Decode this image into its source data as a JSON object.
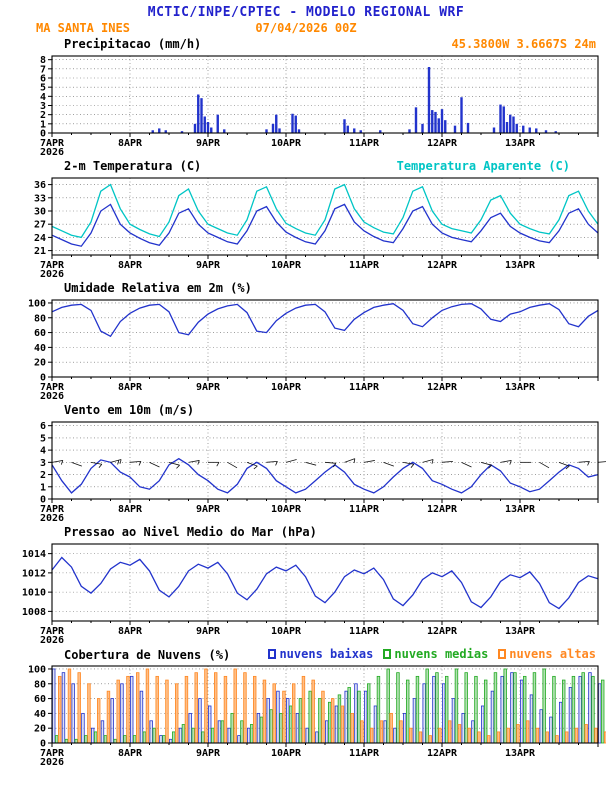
{
  "header": {
    "title": "MCTIC/INPE/CPTEC - MODELO REGIONAL WRF",
    "station": "MA SANTA INES",
    "run_datetime": "07/04/2026 00Z",
    "location": "45.3800W 3.6667S 24m"
  },
  "colors": {
    "title_blue": "#2222cc",
    "orange": "#ff8800",
    "line_blue": "#2233cc",
    "cyan": "#00c5c5",
    "green": "#22aa22",
    "cloud_orange": "#ff8822"
  },
  "panels": {
    "precip": {
      "title": "Precipitacao (mm/h)"
    },
    "temp": {
      "title": "2-m Temperatura (C)",
      "title2": "Temperatura Aparente (C)"
    },
    "rh": {
      "title": "Umidade Relativa em 2m (%)"
    },
    "wind": {
      "title": "Vento em 10m (m/s)"
    },
    "pres": {
      "title": "Pressao ao Nivel Medio do Mar (hPa)"
    },
    "clouds": {
      "title": "Cobertura de Nuvens (%)"
    }
  },
  "x_axis": {
    "hours_total": 168,
    "step_hours": 3,
    "ticks": [
      {
        "h": 0,
        "label": "7APR",
        "sub": "2026"
      },
      {
        "h": 24,
        "label": "8APR"
      },
      {
        "h": 48,
        "label": "9APR"
      },
      {
        "h": 72,
        "label": "10APR"
      },
      {
        "h": 96,
        "label": "11APR"
      },
      {
        "h": 120,
        "label": "12APR"
      },
      {
        "h": 144,
        "label": "13APR"
      }
    ]
  },
  "chart_data": [
    {
      "id": "precipitation",
      "type": "bar",
      "title": "Precipitacao (mm/h)",
      "ylabel": "mm/h",
      "ylim": [
        0,
        8.4
      ],
      "yticks": [
        0,
        1,
        2,
        3,
        4,
        5,
        6,
        7,
        8
      ],
      "color": "#2233cc",
      "bars": [
        [
          31,
          0.3
        ],
        [
          33,
          0.5
        ],
        [
          35,
          0.3
        ],
        [
          40,
          0.2
        ],
        [
          44,
          1.0
        ],
        [
          45,
          4.2
        ],
        [
          46,
          3.8
        ],
        [
          47,
          1.8
        ],
        [
          48,
          1.2
        ],
        [
          49,
          0.6
        ],
        [
          51,
          2.0
        ],
        [
          53,
          0.4
        ],
        [
          66,
          0.4
        ],
        [
          68,
          1.0
        ],
        [
          69,
          2.0
        ],
        [
          70,
          0.5
        ],
        [
          74,
          2.1
        ],
        [
          75,
          1.9
        ],
        [
          76,
          0.4
        ],
        [
          90,
          1.5
        ],
        [
          91,
          0.8
        ],
        [
          93,
          0.5
        ],
        [
          95,
          0.3
        ],
        [
          101,
          0.3
        ],
        [
          110,
          0.4
        ],
        [
          112,
          2.8
        ],
        [
          114,
          1.0
        ],
        [
          116,
          7.2
        ],
        [
          117,
          2.5
        ],
        [
          118,
          2.3
        ],
        [
          119,
          1.6
        ],
        [
          120,
          2.6
        ],
        [
          121,
          1.4
        ],
        [
          124,
          0.8
        ],
        [
          126,
          3.9
        ],
        [
          128,
          1.1
        ],
        [
          136,
          0.6
        ],
        [
          138,
          3.1
        ],
        [
          139,
          2.9
        ],
        [
          140,
          1.2
        ],
        [
          141,
          2.0
        ],
        [
          142,
          1.8
        ],
        [
          143,
          1.0
        ],
        [
          145,
          0.8
        ],
        [
          147,
          0.6
        ],
        [
          149,
          0.5
        ],
        [
          152,
          0.3
        ],
        [
          155,
          0.2
        ]
      ]
    },
    {
      "id": "temperature",
      "type": "line",
      "ylim": [
        20,
        37.5
      ],
      "yticks": [
        21,
        24,
        27,
        30,
        33,
        36
      ],
      "series": [
        {
          "name": "2-m Temperatura (C)",
          "color": "#2233cc",
          "values": [
            24.5,
            23.5,
            22.5,
            22,
            25,
            30,
            31.5,
            27,
            25,
            23.8,
            22.8,
            22.2,
            25,
            29.5,
            30.5,
            27,
            25,
            24,
            23,
            22.5,
            25.5,
            30,
            31,
            27.5,
            25.2,
            24,
            23,
            22.5,
            25.5,
            30.5,
            31.5,
            27.5,
            25.5,
            24.2,
            23.2,
            22.8,
            26,
            30,
            31,
            27,
            25,
            24,
            23.5,
            23,
            25.5,
            28.5,
            29.5,
            26.5,
            25,
            24,
            23.2,
            22.8,
            25.5,
            29.5,
            30.5,
            27,
            25
          ]
        },
        {
          "name": "Temperatura Aparente (C)",
          "color": "#00c5c5",
          "values": [
            26.5,
            25.5,
            24.5,
            24,
            27.5,
            34.5,
            36,
            30.5,
            27,
            25.8,
            24.8,
            24.2,
            27.5,
            33.5,
            35,
            30,
            27,
            26,
            25,
            24.5,
            28,
            34.5,
            35.5,
            30.5,
            27.2,
            26,
            25,
            24.5,
            28,
            35,
            36,
            30.5,
            27.5,
            26.2,
            25.2,
            24.8,
            28.5,
            34.5,
            35.5,
            30,
            27,
            26,
            25.5,
            25,
            28,
            32.5,
            33.5,
            29.5,
            27,
            26,
            25.2,
            24.8,
            28,
            33.5,
            34.5,
            30,
            27
          ]
        }
      ]
    },
    {
      "id": "relative-humidity",
      "type": "line",
      "ylim": [
        0,
        104
      ],
      "yticks": [
        0,
        20,
        40,
        60,
        80,
        100
      ],
      "series": [
        {
          "name": "Umidade Relativa em 2m (%)",
          "color": "#2233cc",
          "values": [
            88,
            94,
            97,
            98,
            90,
            62,
            55,
            75,
            86,
            93,
            97,
            98,
            88,
            60,
            57,
            74,
            85,
            92,
            96,
            98,
            87,
            62,
            60,
            76,
            86,
            93,
            97,
            98,
            88,
            66,
            63,
            78,
            87,
            94,
            97,
            99,
            90,
            72,
            68,
            80,
            90,
            95,
            98,
            99,
            92,
            78,
            75,
            85,
            88,
            94,
            97,
            99,
            91,
            72,
            68,
            82,
            90
          ]
        }
      ]
    },
    {
      "id": "wind-10m",
      "type": "wind",
      "ylim": [
        0,
        6.3
      ],
      "yticks": [
        0,
        1,
        2,
        3,
        4,
        5,
        6
      ],
      "barb_y": 3,
      "series": [
        {
          "name": "Vento em 10m (m/s)",
          "color": "#2233cc",
          "values": [
            2.8,
            1.5,
            0.5,
            1.2,
            2.5,
            3.2,
            3.0,
            2.2,
            1.8,
            1.0,
            0.8,
            1.5,
            2.8,
            3.3,
            2.8,
            2.0,
            1.5,
            0.8,
            0.5,
            1.2,
            2.5,
            3.0,
            2.5,
            1.5,
            1.0,
            0.5,
            0.8,
            1.5,
            2.2,
            2.8,
            2.2,
            1.2,
            0.8,
            0.5,
            1.0,
            1.8,
            2.5,
            3.0,
            2.5,
            1.5,
            1.2,
            0.8,
            0.5,
            1.0,
            2.0,
            2.8,
            2.3,
            1.3,
            1.0,
            0.6,
            0.8,
            1.5,
            2.2,
            2.8,
            2.5,
            1.8,
            2.0
          ]
        }
      ],
      "dirs_deg": [
        80,
        95,
        110,
        120,
        100,
        85,
        75,
        70,
        85,
        100,
        115,
        125,
        105,
        90,
        80,
        75,
        90,
        105,
        120,
        130,
        110,
        95,
        85,
        80,
        75,
        90,
        105,
        115,
        95,
        80,
        70,
        65,
        80,
        95,
        110,
        120,
        100,
        85,
        75,
        70,
        85,
        100,
        115,
        125,
        105,
        90,
        80,
        75,
        90,
        105,
        120,
        130,
        110,
        95,
        85,
        80,
        85
      ]
    },
    {
      "id": "mslp",
      "type": "line",
      "ylim": [
        1007,
        1015
      ],
      "yticks": [
        1008,
        1010,
        1012,
        1014
      ],
      "series": [
        {
          "name": "Pressao ao Nivel Medio do Mar (hPa)",
          "color": "#2233cc",
          "values": [
            1012.3,
            1013.6,
            1012.6,
            1010.6,
            1009.9,
            1010.9,
            1012.4,
            1013.1,
            1012.8,
            1013.4,
            1012.2,
            1010.2,
            1009.5,
            1010.6,
            1012.2,
            1012.9,
            1012.5,
            1013.1,
            1011.9,
            1009.9,
            1009.2,
            1010.3,
            1011.9,
            1012.6,
            1012.2,
            1012.8,
            1011.6,
            1009.6,
            1008.9,
            1010.0,
            1011.6,
            1012.3,
            1011.9,
            1012.5,
            1011.3,
            1009.3,
            1008.6,
            1009.7,
            1011.3,
            1012.0,
            1011.6,
            1012.2,
            1011.0,
            1009.0,
            1008.4,
            1009.5,
            1011.1,
            1011.8,
            1011.5,
            1012.1,
            1010.9,
            1008.9,
            1008.3,
            1009.4,
            1011.0,
            1011.7,
            1011.4
          ]
        }
      ]
    },
    {
      "id": "cloud-cover",
      "type": "bars-multi",
      "ylim": [
        0,
        104
      ],
      "yticks": [
        0,
        20,
        40,
        60,
        80,
        100
      ],
      "series": [
        {
          "name": "nuvens baixas",
          "color": "#2233cc",
          "fill_opacity": 0.15,
          "values": [
            100,
            95,
            80,
            40,
            20,
            30,
            60,
            80,
            90,
            70,
            30,
            10,
            5,
            20,
            40,
            60,
            50,
            30,
            20,
            10,
            20,
            40,
            60,
            70,
            60,
            40,
            20,
            15,
            30,
            50,
            70,
            80,
            70,
            50,
            30,
            20,
            40,
            60,
            80,
            90,
            80,
            60,
            40,
            30,
            50,
            70,
            90,
            95,
            85,
            65,
            45,
            35,
            55,
            75,
            90,
            95,
            80
          ]
        },
        {
          "name": "nuvens medias",
          "color": "#22aa22",
          "fill_opacity": 0.35,
          "values": [
            10,
            5,
            5,
            10,
            15,
            10,
            5,
            10,
            10,
            15,
            20,
            10,
            15,
            25,
            20,
            15,
            20,
            30,
            40,
            30,
            25,
            35,
            45,
            40,
            50,
            60,
            70,
            60,
            55,
            65,
            75,
            70,
            80,
            90,
            100,
            95,
            85,
            90,
            100,
            95,
            90,
            100,
            95,
            90,
            85,
            95,
            100,
            95,
            90,
            95,
            100,
            90,
            85,
            90,
            95,
            90,
            85
          ]
        },
        {
          "name": "nuvens altas",
          "color": "#ff8822",
          "fill_opacity": 0.55,
          "values": [
            90,
            100,
            95,
            80,
            60,
            70,
            85,
            90,
            95,
            100,
            90,
            85,
            80,
            90,
            95,
            100,
            95,
            90,
            100,
            95,
            90,
            85,
            80,
            70,
            80,
            90,
            85,
            70,
            60,
            50,
            40,
            30,
            20,
            30,
            40,
            30,
            20,
            15,
            10,
            20,
            30,
            25,
            20,
            15,
            10,
            15,
            20,
            25,
            30,
            20,
            15,
            10,
            15,
            20,
            25,
            20,
            15
          ]
        }
      ]
    }
  ]
}
